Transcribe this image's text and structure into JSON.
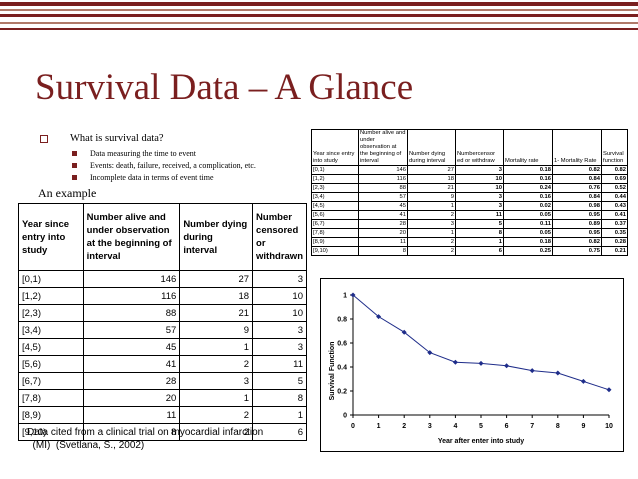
{
  "slide": {
    "title": "Survival Data – A Glance",
    "bullet": "What is survival data?",
    "sub_bullets": [
      "Data measuring the time to event",
      "Events:  death, failure, received, a complication, etc.",
      "Incomplete data in terms of event time"
    ],
    "example_label": "An example",
    "caption_line1": "Data cited from a clinical trial on myocardial infarction",
    "caption_line2": "  (MI)  (Svetlana, S., 2002)"
  },
  "main_table": {
    "headers": [
      "Year since entry into study",
      "Number alive and under observation at the beginning of interval",
      "Number dying during interval",
      "Number censored or withdrawn"
    ],
    "rows": [
      [
        "[0,1)",
        "146",
        "27",
        "3"
      ],
      [
        "[1,2)",
        "116",
        "18",
        "10"
      ],
      [
        "[2,3)",
        "88",
        "21",
        "10"
      ],
      [
        "[3,4)",
        "57",
        "9",
        "3"
      ],
      [
        "[4,5)",
        "45",
        "1",
        "3"
      ],
      [
        "[5,6)",
        "41",
        "2",
        "11"
      ],
      [
        "[6,7)",
        "28",
        "3",
        "5"
      ],
      [
        "[7,8)",
        "20",
        "1",
        "8"
      ],
      [
        "[8,9)",
        "11",
        "2",
        "1"
      ],
      [
        "[9,10)",
        "8",
        "2",
        "6"
      ]
    ]
  },
  "small_table": {
    "headers": [
      "Year since entry into study",
      "Number alive and under observation at the beginning of interval",
      "Number dying during interval",
      "Numbercensor ed or withdraw",
      "Mortality rate",
      "1- Mortality Rate",
      "Survival function"
    ],
    "rows": [
      [
        "[0,1)",
        "146",
        "27",
        "3",
        "0.18",
        "0.82",
        "0.82"
      ],
      [
        "[1,2)",
        "116",
        "18",
        "10",
        "0.16",
        "0.84",
        "0.69"
      ],
      [
        "[2,3)",
        "88",
        "21",
        "10",
        "0.24",
        "0.76",
        "0.52"
      ],
      [
        "[3,4)",
        "57",
        "9",
        "3",
        "0.16",
        "0.84",
        "0.44"
      ],
      [
        "[4,5)",
        "45",
        "1",
        "3",
        "0.02",
        "0.98",
        "0.43"
      ],
      [
        "[5,6)",
        "41",
        "2",
        "11",
        "0.05",
        "0.95",
        "0.41"
      ],
      [
        "[6,7)",
        "28",
        "3",
        "5",
        "0.11",
        "0.89",
        "0.37"
      ],
      [
        "[7,8)",
        "20",
        "1",
        "8",
        "0.05",
        "0.95",
        "0.35"
      ],
      [
        "[8,9)",
        "11",
        "2",
        "1",
        "0.18",
        "0.82",
        "0.28"
      ],
      [
        "[9,10)",
        "8",
        "2",
        "6",
        "0.25",
        "0.75",
        "0.21"
      ]
    ]
  },
  "chart_data": {
    "type": "line",
    "x": [
      0,
      1,
      2,
      3,
      4,
      5,
      6,
      7,
      8,
      9,
      10
    ],
    "series": [
      {
        "values": [
          1,
          0.82,
          0.69,
          0.52,
          0.44,
          0.43,
          0.41,
          0.37,
          0.35,
          0.28,
          0.21
        ]
      }
    ],
    "xlabel": "Year after enter into study",
    "ylabel": "Survival Function",
    "xlim": [
      0,
      10
    ],
    "ylim": [
      0,
      1
    ],
    "xticks": [
      "0",
      "1",
      "2",
      "3",
      "4",
      "5",
      "6",
      "7",
      "8",
      "9",
      "10"
    ],
    "yticks": [
      "0",
      "0.2",
      "0.4",
      "0.6",
      "0.8",
      "1"
    ],
    "grid": false,
    "line_color": "#1f2d8a"
  },
  "colors": {
    "title": "#7a1f1f",
    "stripe_dark": "#7a1f1f",
    "stripe_light": "#b07a6a"
  }
}
